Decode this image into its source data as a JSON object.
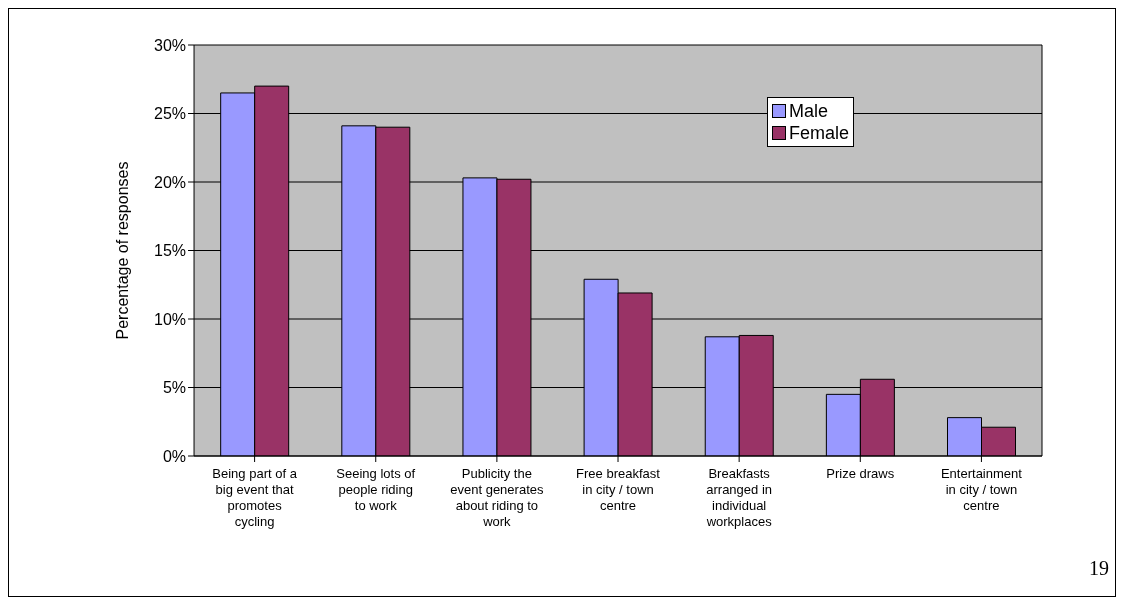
{
  "chart_data": {
    "type": "bar",
    "ylabel": "Percentage of responses",
    "categories": [
      "Being part of a big event that promotes cycling",
      "Seeing lots of people riding to work",
      "Publicity the event generates about riding to work",
      "Free breakfast in city / town centre",
      "Breakfasts arranged in individual workplaces",
      "Prize draws",
      "Entertainment in city / town centre"
    ],
    "series": [
      {
        "name": "Male",
        "color": "#9999ff",
        "values": [
          26.5,
          24.1,
          20.3,
          12.9,
          8.7,
          4.5,
          2.8
        ]
      },
      {
        "name": "Female",
        "color": "#993366",
        "values": [
          27.0,
          24.0,
          20.2,
          11.9,
          8.8,
          5.6,
          2.1
        ]
      }
    ],
    "ylim": [
      0,
      30
    ],
    "yticks": [
      {
        "value": 0,
        "label": "0%"
      },
      {
        "value": 5,
        "label": "5%"
      },
      {
        "value": 10,
        "label": "10%"
      },
      {
        "value": 15,
        "label": "15%"
      },
      {
        "value": 20,
        "label": "20%"
      },
      {
        "value": 25,
        "label": "25%"
      },
      {
        "value": 30,
        "label": "30%"
      }
    ],
    "grid": "y",
    "legend": "top right",
    "annotations": [
      "19"
    ]
  }
}
